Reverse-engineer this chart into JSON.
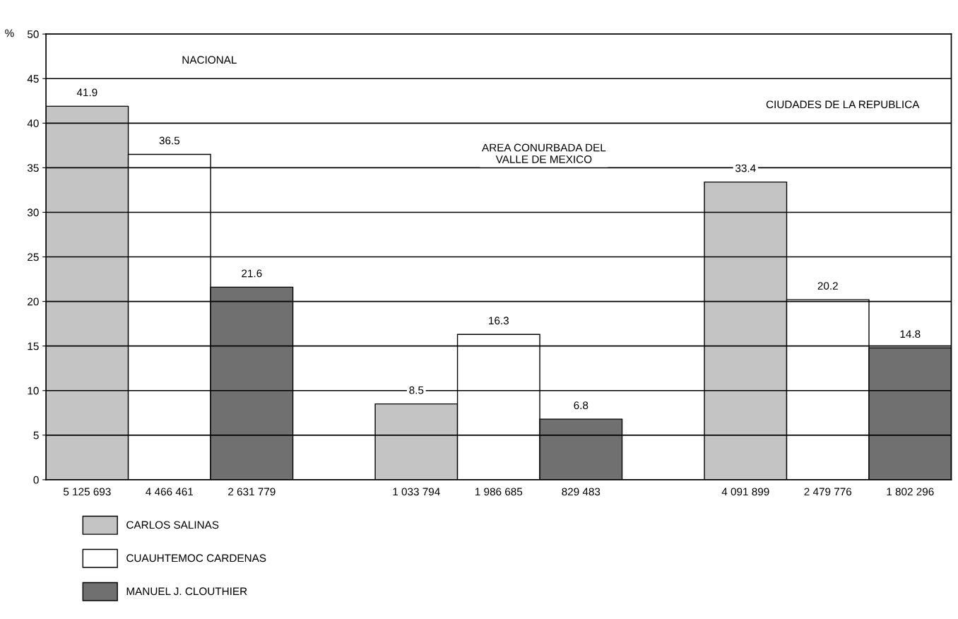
{
  "chart_data": {
    "type": "bar",
    "ylabel": "%",
    "categories": [
      "5 125 693",
      "4 466 461",
      "2 631 779",
      null,
      "1 033 794",
      "1 986 685",
      "829 483",
      null,
      "4 091 899",
      "2 479 776",
      "1 802 296"
    ],
    "series": [
      {
        "name": "CARLOS SALINAS",
        "color": "#c4c4c4",
        "values": [
          41.9,
          null,
          null,
          null,
          8.5,
          null,
          null,
          null,
          33.4,
          null,
          null
        ]
      },
      {
        "name": "CUAUHTEMOC CARDENAS",
        "color": "#ffffff",
        "values": [
          null,
          36.5,
          null,
          null,
          null,
          16.3,
          null,
          null,
          null,
          20.2,
          null
        ]
      },
      {
        "name": "MANUEL J. CLOUTHIER",
        "color": "#707070",
        "values": [
          null,
          null,
          21.6,
          null,
          null,
          null,
          6.8,
          null,
          null,
          null,
          14.8
        ]
      }
    ],
    "ylim": [
      0,
      50
    ],
    "yticks": [
      0,
      5,
      10,
      15,
      20,
      25,
      30,
      35,
      40,
      45,
      50
    ],
    "grid": "y",
    "legend": "bottom left",
    "data_labels": true,
    "annotations": [
      "NACIONAL",
      "AREA CONURBADA DEL\nVALLE DE MEXICO",
      "CIUDADES DE LA REPUBLICA"
    ]
  }
}
